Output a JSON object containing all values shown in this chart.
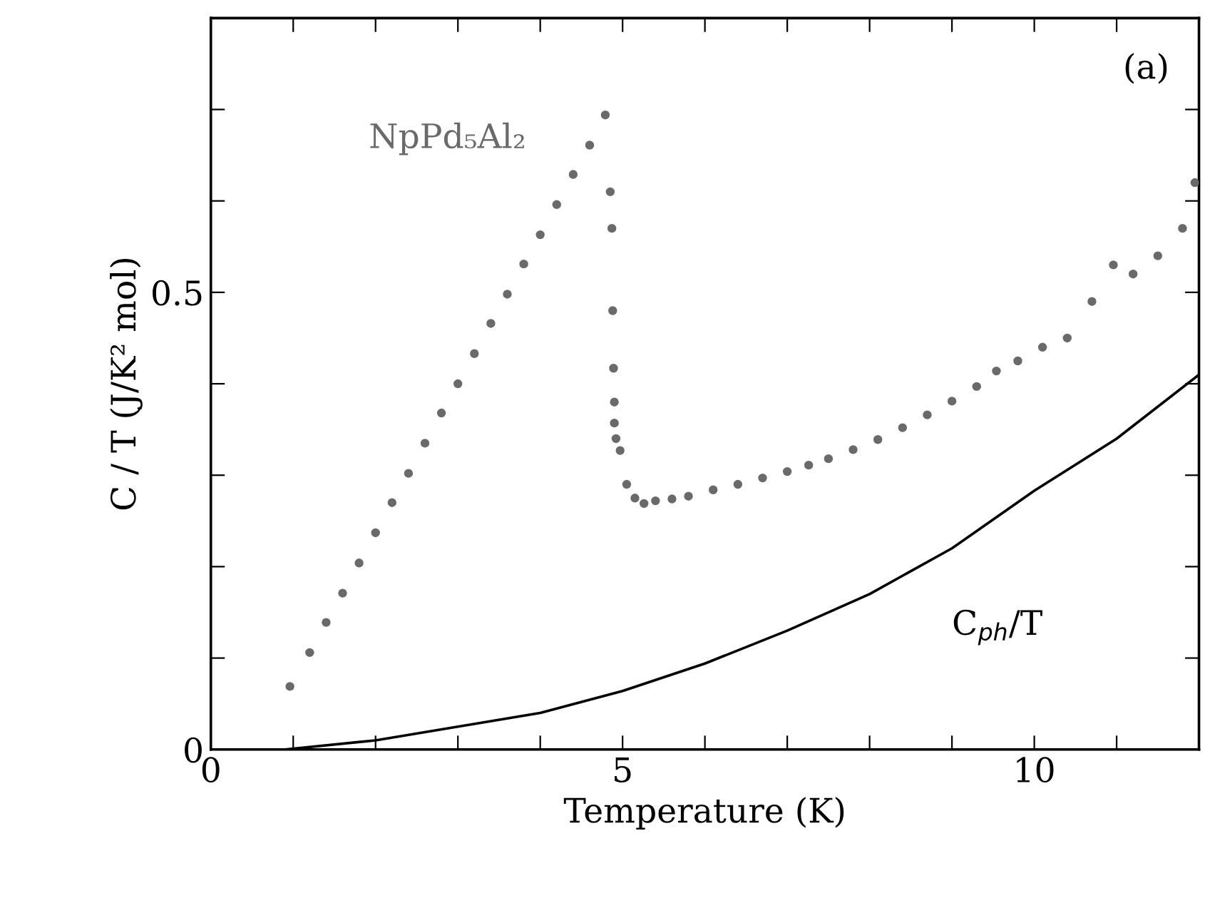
{
  "chart_data": {
    "type": "scatter",
    "xlabel": "Temperature (K)",
    "ylabel": "C / T (J/K² mol)",
    "annotations": [
      "(a)"
    ],
    "xlim": [
      0,
      12
    ],
    "ylim": [
      0,
      0.8
    ],
    "xticks": [
      0,
      {
        "value": 1,
        "label": null
      },
      {
        "value": 2,
        "label": null
      },
      {
        "value": 3,
        "label": null
      },
      {
        "value": 4,
        "label": null
      },
      5,
      {
        "value": 6,
        "label": null
      },
      {
        "value": 7,
        "label": null
      },
      {
        "value": 8,
        "label": null
      },
      {
        "value": 9,
        "label": null
      },
      10,
      {
        "value": 11,
        "label": null
      }
    ],
    "yticks": [
      0,
      {
        "value": 0.1,
        "label": null
      },
      {
        "value": 0.2,
        "label": null
      },
      {
        "value": 0.3,
        "label": null
      },
      {
        "value": 0.4,
        "label": null
      },
      0.5,
      {
        "value": 0.6,
        "label": null
      },
      {
        "value": 0.7,
        "label": null
      }
    ],
    "grid": false,
    "legend": false,
    "series": [
      {
        "name": "NpPd₅Al₂",
        "marker": "circle",
        "color": "#6a6a6a",
        "x": [
          0.96,
          1.2,
          1.4,
          1.6,
          1.8,
          2.0,
          2.2,
          2.4,
          2.6,
          2.8,
          3.0,
          3.2,
          3.4,
          3.6,
          3.8,
          4.0,
          4.2,
          4.4,
          4.6,
          4.79,
          4.85,
          4.87,
          4.88,
          4.89,
          4.9,
          4.9,
          4.92,
          4.97,
          5.05,
          5.15,
          5.26,
          5.4,
          5.6,
          5.8,
          6.1,
          6.4,
          6.7,
          7.0,
          7.26,
          7.5,
          7.8,
          8.1,
          8.4,
          8.7,
          9.0,
          9.3,
          9.54,
          9.8,
          10.1,
          10.4,
          10.7,
          10.96,
          11.2,
          11.5,
          11.8,
          11.95
        ],
        "values": [
          0.069,
          0.106,
          0.139,
          0.171,
          0.204,
          0.237,
          0.27,
          0.302,
          0.335,
          0.368,
          0.4,
          0.433,
          0.466,
          0.498,
          0.531,
          0.563,
          0.596,
          0.629,
          0.661,
          0.694,
          0.61,
          0.57,
          0.48,
          0.417,
          0.38,
          0.357,
          0.34,
          0.327,
          0.29,
          0.275,
          0.269,
          0.272,
          0.274,
          0.277,
          0.284,
          0.29,
          0.297,
          0.304,
          0.311,
          0.318,
          0.328,
          0.339,
          0.352,
          0.366,
          0.381,
          0.397,
          0.414,
          0.425,
          0.44,
          0.45,
          0.49,
          0.53,
          0.52,
          0.54,
          0.57,
          0.62
        ]
      },
      {
        "name": "C$_{ph}$/T",
        "type": "line",
        "marker": "none",
        "line_style": "solid",
        "color": "#000000",
        "x": [
          0.9,
          2,
          3,
          4,
          5,
          6,
          7,
          8,
          9,
          10,
          11,
          12
        ],
        "values": [
          0.0,
          0.01,
          0.025,
          0.04,
          0.064,
          0.094,
          0.13,
          0.17,
          0.22,
          0.283,
          0.34,
          0.41
        ]
      }
    ]
  }
}
